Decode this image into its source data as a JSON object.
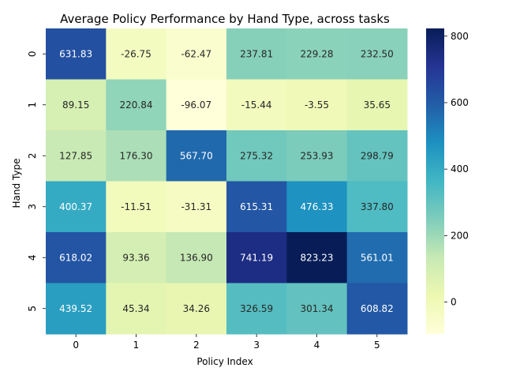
{
  "chart_data": {
    "type": "heatmap",
    "title": "Average Policy Performance by Hand Type, across tasks",
    "xlabel": "Policy Index",
    "ylabel": "Hand Type",
    "x_categories": [
      "0",
      "1",
      "2",
      "3",
      "4",
      "5"
    ],
    "y_categories": [
      "0",
      "1",
      "2",
      "3",
      "4",
      "5"
    ],
    "values": [
      [
        631.83,
        -26.75,
        -62.47,
        237.81,
        229.28,
        232.5
      ],
      [
        89.15,
        220.84,
        -96.07,
        -15.44,
        -3.55,
        35.65
      ],
      [
        127.85,
        176.3,
        567.7,
        275.32,
        253.93,
        298.79
      ],
      [
        400.37,
        -11.51,
        -31.31,
        615.31,
        476.33,
        337.8
      ],
      [
        618.02,
        93.36,
        136.9,
        741.19,
        823.23,
        561.01
      ],
      [
        439.52,
        45.34,
        34.26,
        326.59,
        301.34,
        608.82
      ]
    ],
    "value_labels": [
      [
        "631.83",
        "-26.75",
        "-62.47",
        "237.81",
        "229.28",
        "232.50"
      ],
      [
        "89.15",
        "220.84",
        "-96.07",
        "-15.44",
        "-3.55",
        "35.65"
      ],
      [
        "127.85",
        "176.30",
        "567.70",
        "275.32",
        "253.93",
        "298.79"
      ],
      [
        "400.37",
        "-11.51",
        "-31.31",
        "615.31",
        "476.33",
        "337.80"
      ],
      [
        "618.02",
        "93.36",
        "136.90",
        "741.19",
        "823.23",
        "561.01"
      ],
      [
        "439.52",
        "45.34",
        "34.26",
        "326.59",
        "301.34",
        "608.82"
      ]
    ],
    "colormap": "YlGnBu",
    "vmin": -96.07,
    "vmax": 823.23,
    "colorbar_ticks": [
      0,
      200,
      400,
      600,
      800
    ],
    "colorbar_tick_labels": [
      "0",
      "200",
      "400",
      "600",
      "800"
    ],
    "colorbar_location": "right",
    "grid": false
  }
}
